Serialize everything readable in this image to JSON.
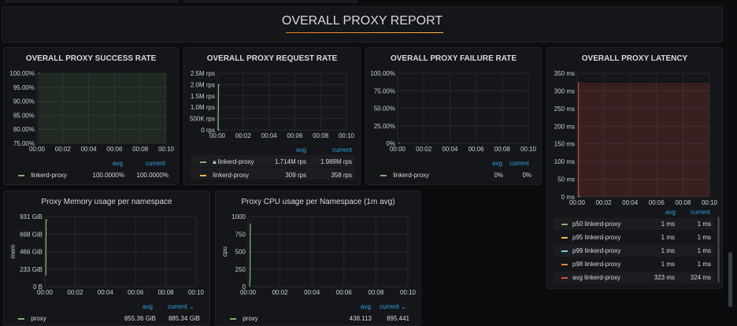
{
  "header": {
    "title": "OVERALL PROXY REPORT"
  },
  "colors": {
    "green": "#7eb26d",
    "yellow": "#eab839",
    "blue": "#6ed0e0",
    "orange": "#ef843c",
    "red": "#e24d42",
    "link": "#33a2e5"
  },
  "panels": {
    "success": {
      "title": "OVERALL PROXY SUCCESS RATE",
      "yticks": [
        "100.00%",
        "95.00%",
        "90.00%",
        "85.00%",
        "80.00%",
        "75.00%"
      ],
      "xticks": [
        "00:00",
        "00:02",
        "00:04",
        "00:06",
        "00:08",
        "00:10"
      ],
      "legend": {
        "avg_header": "avg",
        "current_header": "current",
        "rows": [
          {
            "name": "linkerd-proxy",
            "avg": "100.0000%",
            "current": "100.0000%"
          }
        ]
      }
    },
    "request": {
      "title": "OVERALL PROXY REQUEST RATE",
      "yticks": [
        "2.5M rps",
        "2.0M rps",
        "1.5M rps",
        "1.0M rps",
        "500K rps",
        "0 rps"
      ],
      "xticks": [
        "00:00",
        "00:02",
        "00:04",
        "00:06",
        "00:08",
        "00:10"
      ],
      "legend": {
        "avg_header": "avg",
        "current_header": "current",
        "rows": [
          {
            "name": "linkerd-proxy",
            "avg": "1.714M rps",
            "current": "1.989M rps"
          },
          {
            "name": "linkerd-proxy",
            "avg": "309 rps",
            "current": "358 rps"
          }
        ]
      }
    },
    "failure": {
      "title": "OVERALL PROXY FAILURE RATE",
      "yticks": [
        "100.00%",
        "75.00%",
        "50.00%",
        "25.00%",
        "0%"
      ],
      "xticks": [
        "00:00",
        "00:02",
        "00:04",
        "00:06",
        "00:08",
        "00:10"
      ],
      "legend": {
        "avg_header": "avg",
        "current_header": "current",
        "rows": [
          {
            "name": "linkerd-proxy",
            "avg": "0%",
            "current": "0%"
          }
        ]
      }
    },
    "latency": {
      "title": "OVERALL PROXY LATENCY",
      "yticks": [
        "350 ms",
        "300 ms",
        "250 ms",
        "200 ms",
        "150 ms",
        "100 ms",
        "50 ms",
        "0 ms"
      ],
      "xticks": [
        "00:00",
        "00:02",
        "00:04",
        "00:06",
        "00:08",
        "00:10"
      ],
      "legend": {
        "avg_header": "avg",
        "current_header": "current",
        "rows": [
          {
            "name": "p50 linkerd-proxy",
            "avg": "1 ms",
            "current": "1 ms"
          },
          {
            "name": "p95 linkerd-proxy",
            "avg": "1 ms",
            "current": "1 ms"
          },
          {
            "name": "p99 linkerd-proxy",
            "avg": "1 ms",
            "current": "1 ms"
          },
          {
            "name": "p98 linkerd-proxy",
            "avg": "1 ms",
            "current": "1 ms"
          },
          {
            "name": "avg linkerd-proxy",
            "avg": "323 ms",
            "current": "324 ms"
          }
        ]
      }
    },
    "memory": {
      "title": "Proxy Memory usage per namespace",
      "ylabel": "mem",
      "yticks": [
        "931 GiB",
        "698 GiB",
        "466 GiB",
        "233 GiB",
        "0 B"
      ],
      "xticks": [
        "00:00",
        "00:02",
        "00:04",
        "00:06",
        "00:08",
        "00:10"
      ],
      "legend": {
        "avg_header": "avg",
        "current_header": "current ⌄",
        "rows": [
          {
            "name": "proxy",
            "avg": "855.36 GiB",
            "current": "885.34 GiB"
          }
        ]
      }
    },
    "cpu": {
      "title": "Proxy CPU usage per Namespace (1m avg)",
      "ylabel": "cpu",
      "yticks": [
        "1000",
        "750",
        "500",
        "250",
        "0"
      ],
      "xticks": [
        "00:00",
        "00:02",
        "00:04",
        "00:06",
        "00:08",
        "00:10"
      ],
      "legend": {
        "avg_header": "avg",
        "current_header": "current ⌄",
        "rows": [
          {
            "name": "proxy",
            "avg": "438.113",
            "current": "895.441"
          }
        ]
      }
    }
  },
  "chart_data": [
    {
      "type": "line",
      "title": "OVERALL PROXY SUCCESS RATE",
      "ylim": [
        75,
        100
      ],
      "x": [
        "00:06",
        "00:10"
      ],
      "series": [
        {
          "name": "linkerd-proxy",
          "values": [
            100,
            100
          ]
        }
      ]
    },
    {
      "type": "line",
      "title": "OVERALL PROXY REQUEST RATE",
      "unit": "rps",
      "ylim": [
        0,
        2500000
      ],
      "x": [
        "00:04",
        "00:04.6",
        "00:05.4",
        "00:05.8",
        "00:06",
        "00:10"
      ],
      "series": [
        {
          "name": "linkerd-proxy",
          "values": [
            0,
            900000,
            1700000,
            2000000,
            2000000,
            2000000
          ]
        },
        {
          "name": "linkerd-proxy",
          "values": [
            309,
            309,
            309,
            358,
            358,
            358
          ]
        }
      ]
    },
    {
      "type": "line",
      "title": "OVERALL PROXY FAILURE RATE",
      "ylim": [
        0,
        100
      ],
      "x": [
        "00:05",
        "00:10"
      ],
      "series": [
        {
          "name": "linkerd-proxy",
          "values": [
            0,
            0
          ]
        }
      ]
    },
    {
      "type": "line",
      "title": "OVERALL PROXY LATENCY",
      "unit": "ms",
      "ylim": [
        0,
        350
      ],
      "x": [
        "00:05.8",
        "00:10"
      ],
      "series": [
        {
          "name": "p50 linkerd-proxy",
          "values": [
            1,
            1
          ]
        },
        {
          "name": "p95 linkerd-proxy",
          "values": [
            1,
            1
          ]
        },
        {
          "name": "p99 linkerd-proxy",
          "values": [
            1,
            1
          ]
        },
        {
          "name": "p98 linkerd-proxy",
          "values": [
            1,
            1
          ]
        },
        {
          "name": "avg linkerd-proxy",
          "values": [
            323,
            324
          ]
        }
      ]
    },
    {
      "type": "line",
      "title": "Proxy Memory usage per namespace",
      "unit": "GiB",
      "ylim": [
        0,
        931
      ],
      "x": [
        "00:04.4",
        "00:04.5",
        "00:04.6",
        "00:04.7",
        "00:10"
      ],
      "series": [
        {
          "name": "proxy",
          "values": [
            150,
            640,
            660,
            885,
            885
          ]
        }
      ]
    },
    {
      "type": "line",
      "title": "Proxy CPU usage per Namespace (1m avg)",
      "ylim": [
        0,
        1000
      ],
      "x": [
        "00:06.3",
        "00:06.8",
        "00:07.6",
        "00:08.0",
        "00:08.4",
        "00:09",
        "00:10"
      ],
      "series": [
        {
          "name": "proxy",
          "values": [
            0,
            60,
            100,
            500,
            860,
            895,
            895
          ]
        }
      ]
    }
  ]
}
